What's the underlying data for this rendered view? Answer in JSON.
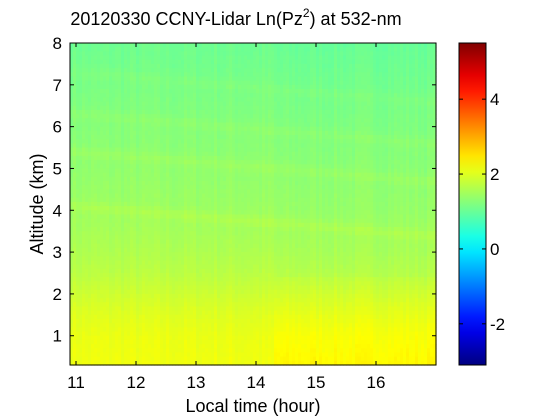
{
  "chart_data": {
    "type": "heatmap",
    "title": {
      "prefix": "20120330 CCNY-Lidar Ln(Pz",
      "superscript": "2",
      "suffix": ") at 532-nm"
    },
    "xlabel": "Local time (hour)",
    "ylabel": "Altitude (km)",
    "xlim": [
      10.9,
      17.0
    ],
    "ylim": [
      0.3,
      8.0
    ],
    "xticks": [
      11,
      12,
      13,
      14,
      15,
      16
    ],
    "yticks": [
      1,
      2,
      3,
      4,
      5,
      6,
      7,
      8
    ],
    "colorbar": {
      "colormap": "jet",
      "clim": [
        -3.1,
        5.5
      ],
      "ticks": [
        -2,
        0,
        2,
        4
      ],
      "tick_labels": [
        "-2",
        "0",
        "2",
        "4"
      ]
    },
    "time_break": 14.3,
    "profile": {
      "altitude_km": [
        0.3,
        1.0,
        1.5,
        2.0,
        2.5,
        3.0,
        4.0,
        5.0,
        6.0,
        7.0,
        8.0
      ],
      "ln_pz2": [
        2.15,
        2.1,
        2.0,
        1.85,
        1.7,
        1.6,
        1.45,
        1.35,
        1.25,
        1.15,
        1.05
      ]
    },
    "layers": [
      {
        "altitude_km": 3.8,
        "delta": 0.12
      },
      {
        "altitude_km": 5.1,
        "delta": 0.1
      },
      {
        "altitude_km": 6.0,
        "delta": 0.08
      },
      {
        "altitude_km": 7.0,
        "delta": 0.06
      }
    ]
  }
}
